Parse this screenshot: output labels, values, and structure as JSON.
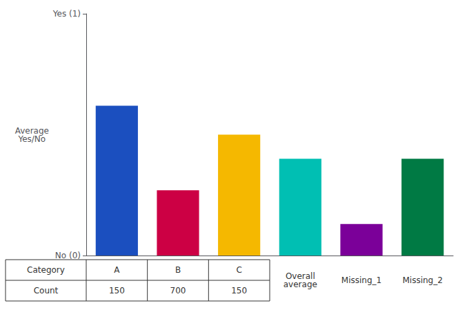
{
  "chart_data": {
    "type": "bar",
    "categories": [
      "A",
      "B",
      "C",
      "Overall\naverage",
      "Missing_1",
      "Missing_2"
    ],
    "values": [
      0.62,
      0.27,
      0.5,
      0.4,
      0.13,
      0.4
    ],
    "colors": [
      "#1B4FBF",
      "#CC0044",
      "#F5B800",
      "#00BFB3",
      "#7B0099",
      "#007A44"
    ],
    "ylim": [
      0,
      1.0
    ],
    "yticks": [
      {
        "value": 0,
        "label": "No (0)"
      },
      {
        "value": 1,
        "label": "Yes (1)"
      }
    ],
    "y_label": "Average\nYes/No",
    "grid": false,
    "tick_labels": "y",
    "table": {
      "row_labels": [
        "Category",
        "Count"
      ],
      "counts": [
        150,
        700,
        150
      ]
    }
  }
}
